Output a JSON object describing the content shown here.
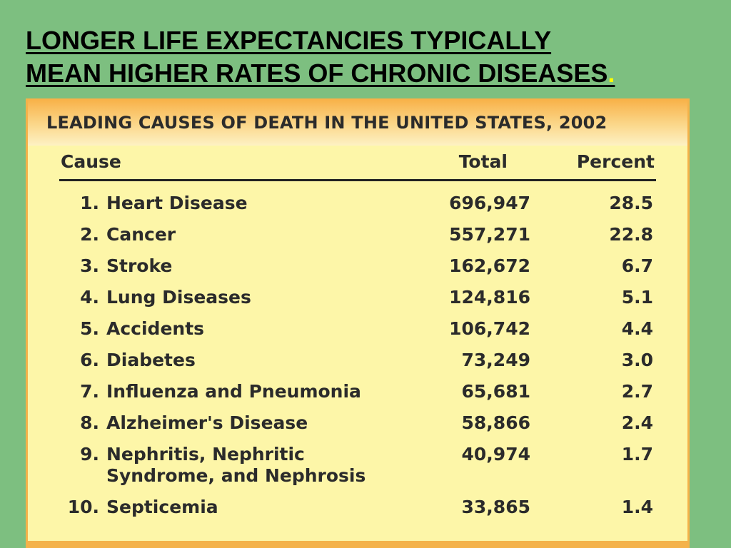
{
  "slide": {
    "title_line1": "LONGER LIFE EXPECTANCIES TYPICALLY",
    "title_line2": "MEAN HIGHER RATES OF CHRONIC DISEASES",
    "title_dot": "."
  },
  "table": {
    "heading": "LEADING CAUSES OF DEATH IN THE UNITED STATES, 2002",
    "columns": {
      "cause": "Cause",
      "total": "Total",
      "percent": "Percent"
    },
    "rows": [
      {
        "num": "1.",
        "cause_line1": "Heart Disease",
        "cause_line2": "",
        "total": "696,947",
        "percent": "28.5"
      },
      {
        "num": "2.",
        "cause_line1": "Cancer",
        "cause_line2": "",
        "total": "557,271",
        "percent": "22.8"
      },
      {
        "num": "3.",
        "cause_line1": "Stroke",
        "cause_line2": "",
        "total": "162,672",
        "percent": "6.7"
      },
      {
        "num": "4.",
        "cause_line1": "Lung Diseases",
        "cause_line2": "",
        "total": "124,816",
        "percent": "5.1"
      },
      {
        "num": "5.",
        "cause_line1": "Accidents",
        "cause_line2": "",
        "total": "106,742",
        "percent": "4.4"
      },
      {
        "num": "6.",
        "cause_line1": "Diabetes",
        "cause_line2": "",
        "total": "73,249",
        "percent": "3.0"
      },
      {
        "num": "7.",
        "cause_line1": "Influenza and Pneumonia",
        "cause_line2": "",
        "total": "65,681",
        "percent": "2.7"
      },
      {
        "num": "8.",
        "cause_line1": "Alzheimer's Disease",
        "cause_line2": "",
        "total": "58,866",
        "percent": "2.4"
      },
      {
        "num": "9.",
        "cause_line1": "Nephritis, Nephritic",
        "cause_line2": "Syndrome, and Nephrosis",
        "total": "40,974",
        "percent": "1.7"
      },
      {
        "num": "10.",
        "cause_line1": "Septicemia",
        "cause_line2": "",
        "total": "33,865",
        "percent": "1.4"
      }
    ]
  }
}
